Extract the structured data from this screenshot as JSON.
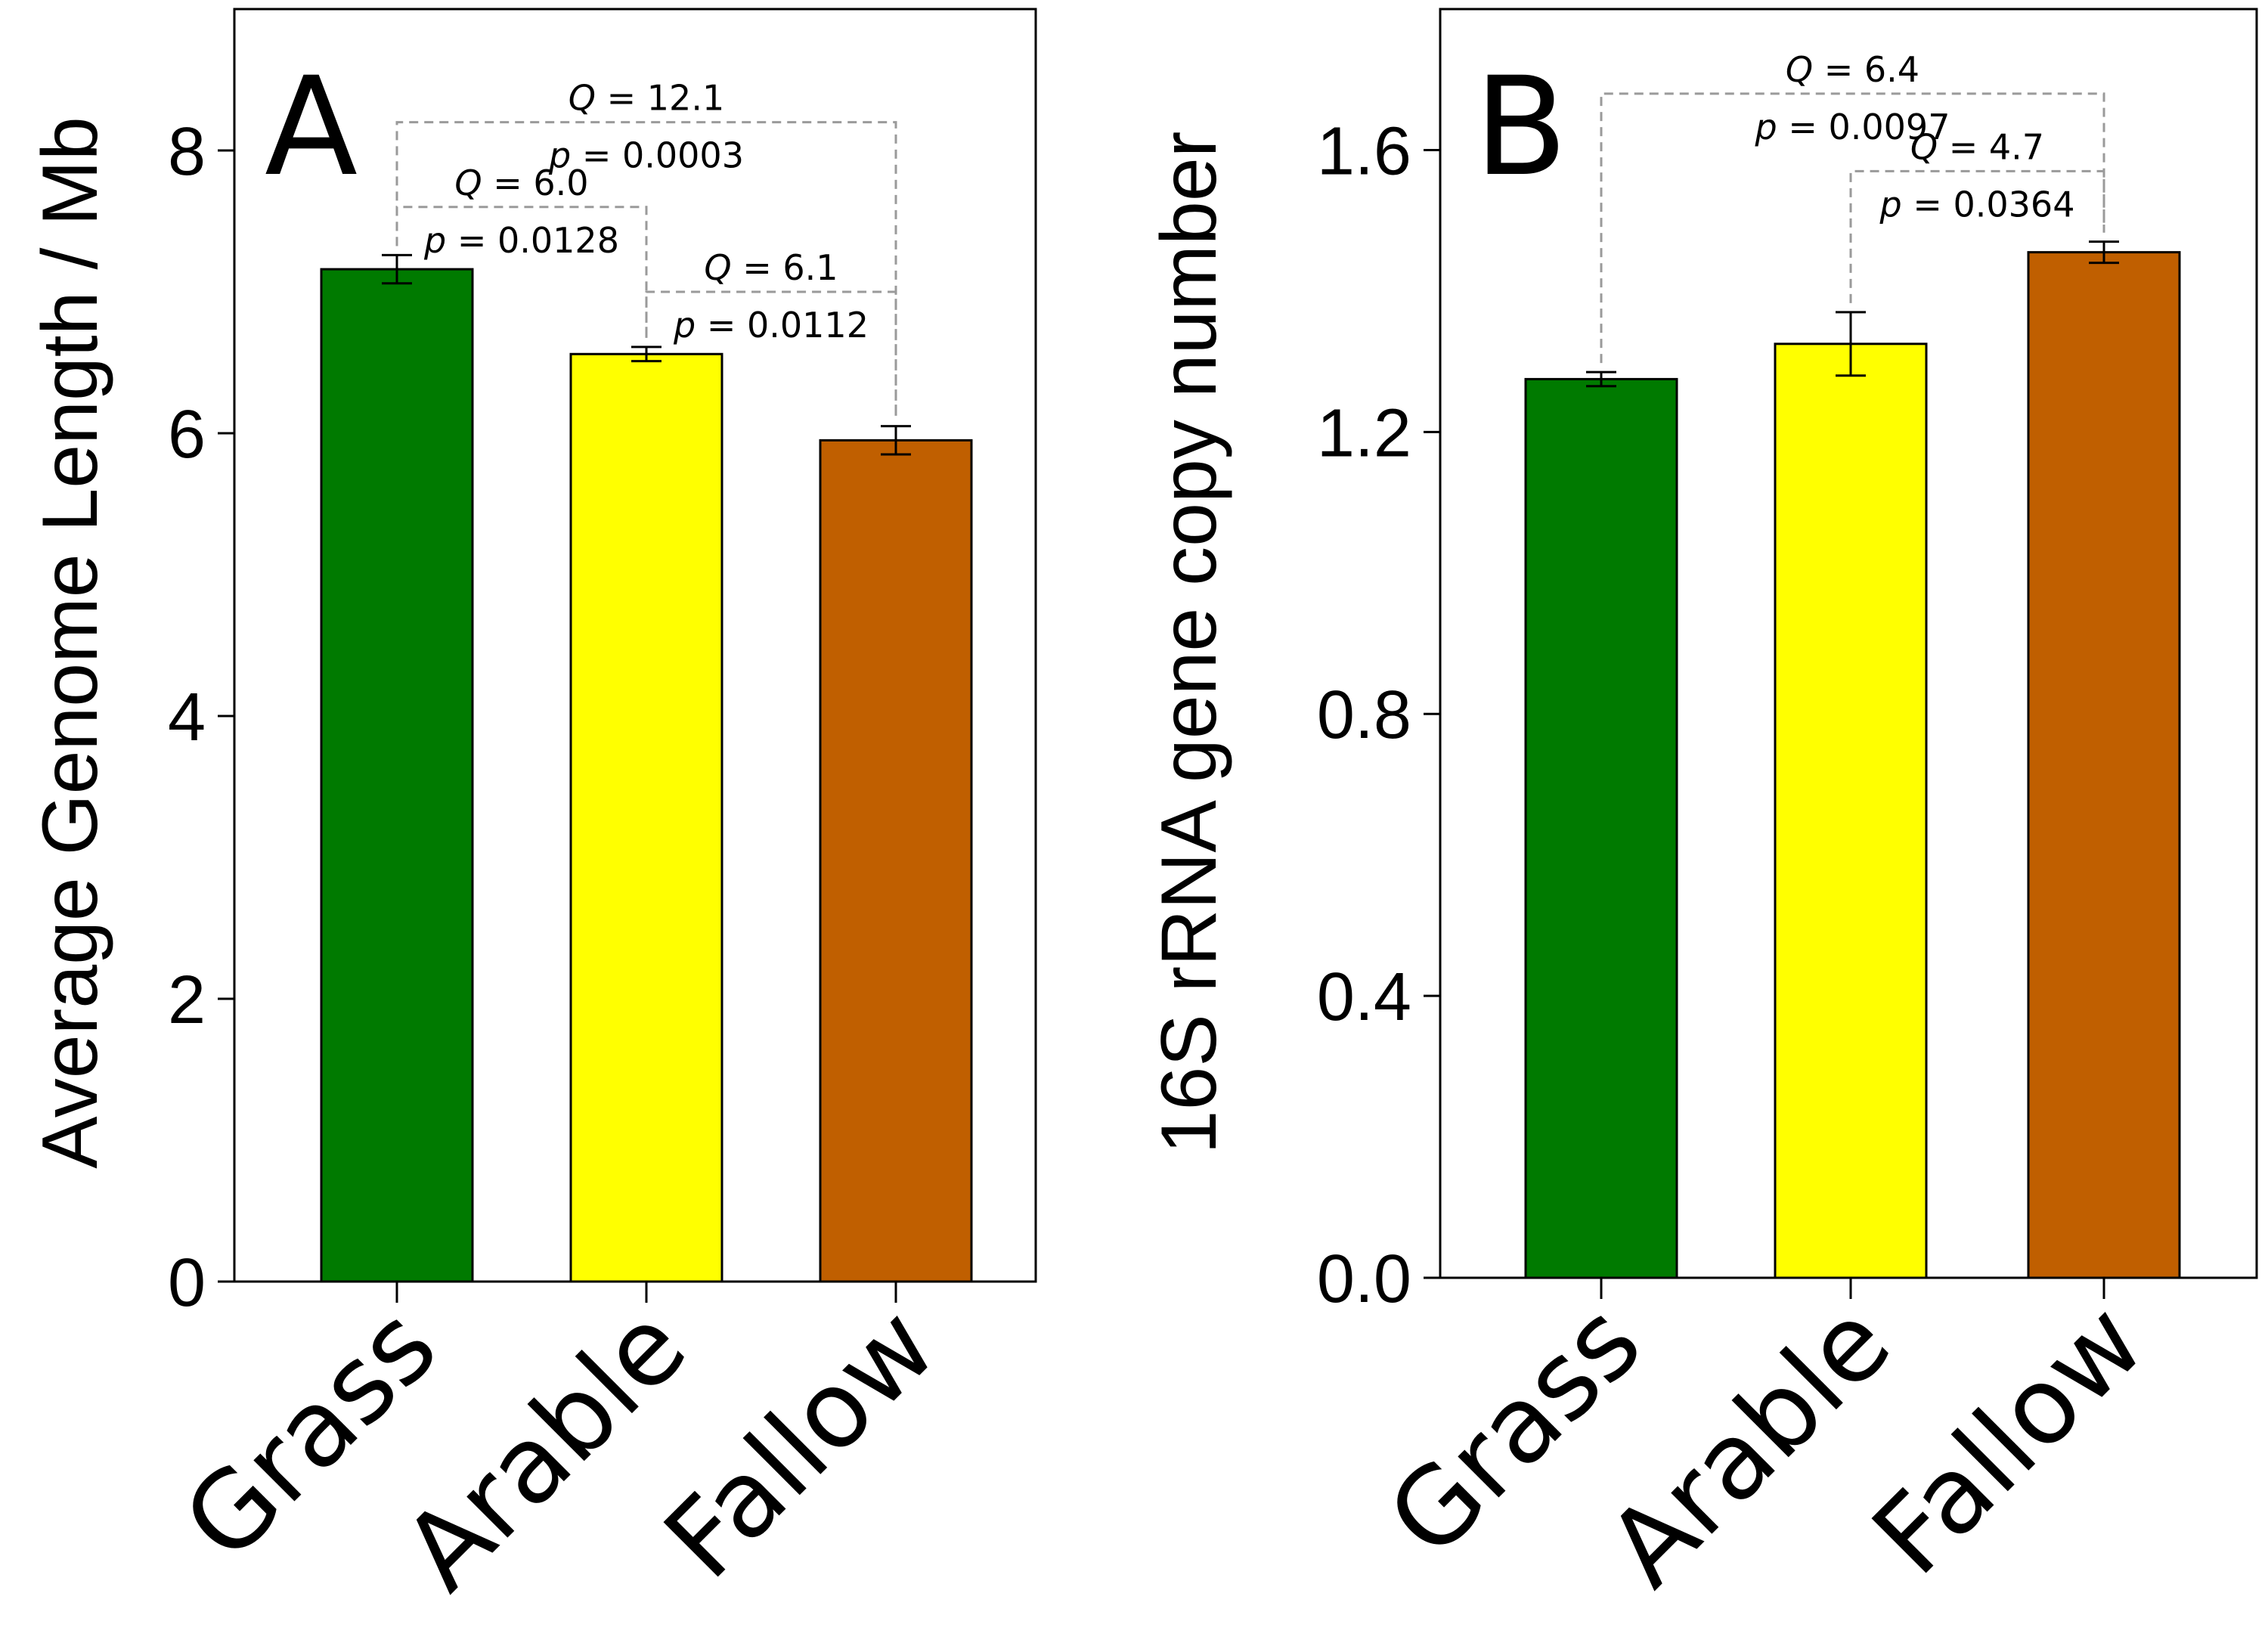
{
  "chart_data": [
    {
      "type": "bar",
      "panel": "A",
      "categories": [
        "Grass",
        "Arable",
        "Fallow"
      ],
      "values": [
        7.16,
        6.56,
        5.95
      ],
      "errors": [
        0.1,
        0.05,
        0.1
      ],
      "colors": [
        "#007A00",
        "#FFFF00",
        "#C05F00"
      ],
      "ylabel": "Average Genome Length / Mb",
      "ylim": [
        0,
        9
      ],
      "yticks": [
        0,
        2,
        4,
        6,
        8
      ],
      "ytick_labels": [
        "0",
        "2",
        "4",
        "6",
        "8"
      ],
      "comparisons": [
        {
          "from": 0,
          "to": 2,
          "level": 8.2,
          "q_label": "Q",
          "q_text": " = 12.1",
          "p_label": "p",
          "p_text": " = 0.0003"
        },
        {
          "from": 0,
          "to": 1,
          "level": 7.6,
          "q_label": "Q",
          "q_text": " = 6.0",
          "p_label": "p",
          "p_text": " = 0.0128"
        },
        {
          "from": 1,
          "to": 2,
          "level": 7.0,
          "q_label": "Q",
          "q_text": " = 6.1",
          "p_label": "p",
          "p_text": " = 0.0112"
        }
      ]
    },
    {
      "type": "bar",
      "panel": "B",
      "categories": [
        "Grass",
        "Arable",
        "Fallow"
      ],
      "values": [
        1.275,
        1.325,
        1.455
      ],
      "errors": [
        0.01,
        0.045,
        0.015
      ],
      "colors": [
        "#007A00",
        "#FFFF00",
        "#C05F00"
      ],
      "ylabel": "16S rRNA gene copy number",
      "ylim": [
        0,
        1.8
      ],
      "yticks": [
        0,
        0.4,
        0.8,
        1.2,
        1.6
      ],
      "ytick_labels": [
        "0.0",
        "0.4",
        "0.8",
        "1.2",
        "1.6"
      ],
      "comparisons": [
        {
          "from": 0,
          "to": 2,
          "level": 1.68,
          "q_label": "Q",
          "q_text": " = 6.4",
          "p_label": "p",
          "p_text": " = 0.0097"
        },
        {
          "from": 1,
          "to": 2,
          "level": 1.57,
          "q_label": "Q",
          "q_text": " = 4.7",
          "p_label": "p",
          "p_text": " = 0.0364"
        }
      ]
    }
  ]
}
